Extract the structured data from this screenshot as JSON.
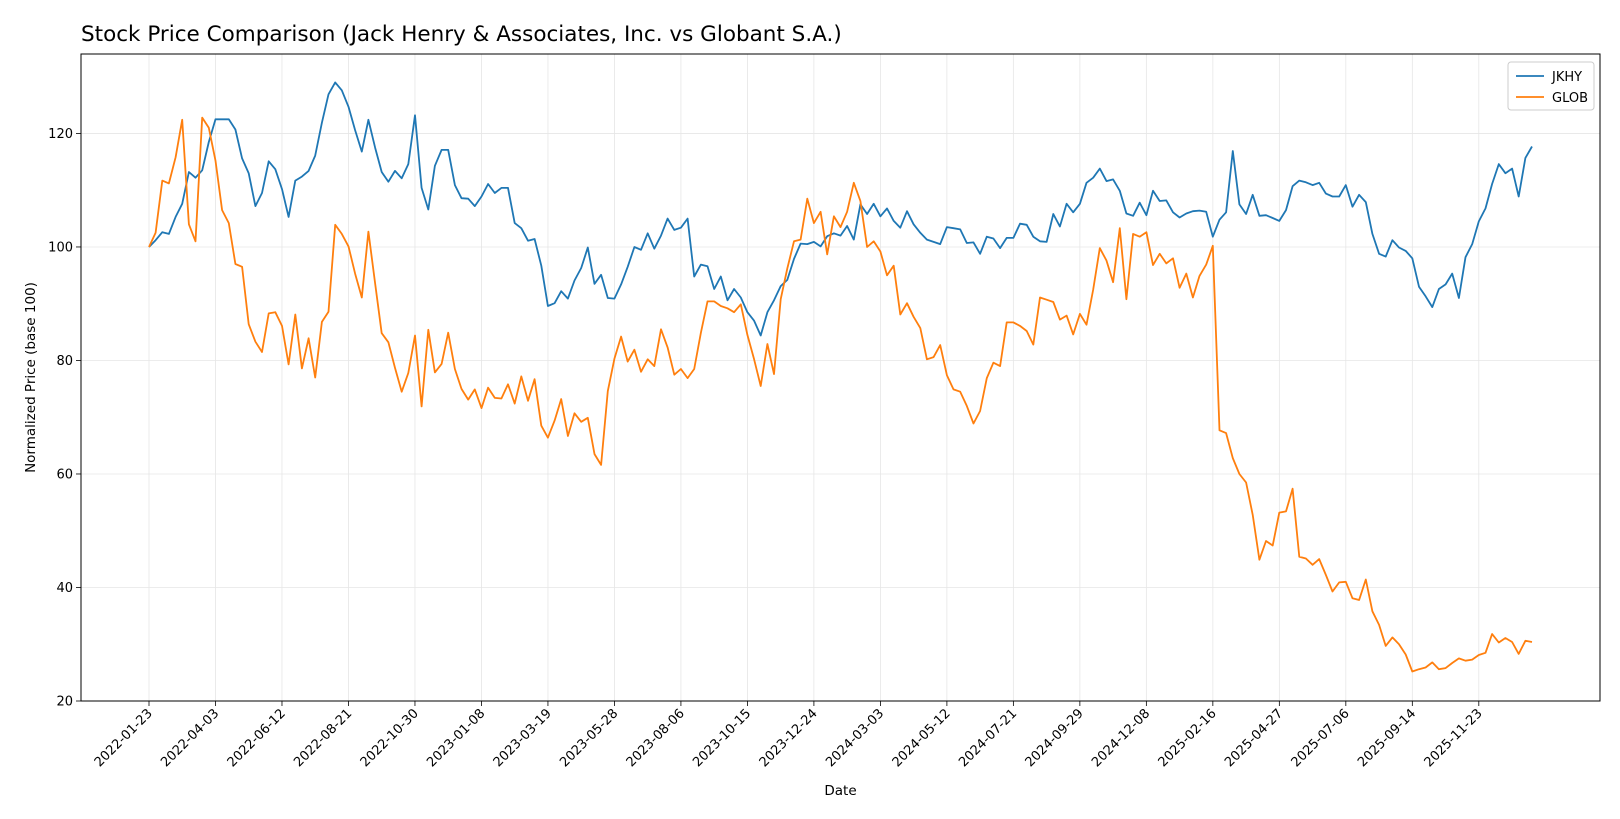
{
  "chart_data": {
    "type": "line",
    "title": "Stock Price Comparison (Jack Henry & Associates, Inc. vs Globant S.A.)",
    "xlabel": "Date",
    "ylabel": "Normalized Price (base 100)",
    "ylim": [
      20,
      134
    ],
    "yticks": [
      20,
      40,
      60,
      80,
      100,
      120
    ],
    "xticks": [
      "2022-01-23",
      "2022-04-03",
      "2022-06-12",
      "2022-08-21",
      "2022-10-30",
      "2023-01-08",
      "2023-03-19",
      "2023-05-28",
      "2023-08-06",
      "2023-10-15",
      "2023-12-24",
      "2024-03-03",
      "2024-05-12",
      "2024-07-21",
      "2024-09-29",
      "2024-12-08",
      "2025-02-16",
      "2025-04-27",
      "2025-07-06",
      "2025-09-14",
      "2025-11-23"
    ],
    "grid": true,
    "legend_position": "top-right",
    "series": [
      {
        "name": "JKHY",
        "color": "#1f77b4",
        "values": [
          100,
          101.2,
          102.6,
          102.3,
          105.3,
          107.6,
          113.2,
          112.2,
          113.5,
          118.5,
          122.5,
          122.5,
          122.5,
          120.7,
          115.6,
          113,
          107.2,
          109.5,
          115.1,
          113.7,
          110.2,
          105.3,
          111.7,
          112.4,
          113.4,
          116.1,
          121.9,
          126.9,
          129,
          127.6,
          124.7,
          120.6,
          116.8,
          122.4,
          117.5,
          113.2,
          111.5,
          113.4,
          112.1,
          114.6,
          123.2,
          110.4,
          106.6,
          114.3,
          117.1,
          117.1,
          110.9,
          108.6,
          108.5,
          107.2,
          108.9,
          111.1,
          109.5,
          110.4,
          110.4,
          104.2,
          103.3,
          101.1,
          101.4,
          96.7,
          89.6,
          90.1,
          92.2,
          90.9,
          94.1,
          96.3,
          99.9,
          93.5,
          95.1,
          91,
          90.9,
          93.4,
          96.5,
          100,
          99.5,
          102.4,
          99.7,
          102,
          105,
          103,
          103.4,
          105,
          94.8,
          96.9,
          96.6,
          92.6,
          94.8,
          90.6,
          92.6,
          91.1,
          88.5,
          87,
          84.4,
          88.5,
          90.6,
          93.1,
          94.2,
          97.9,
          100.6,
          100.5,
          100.9,
          100.1,
          101.9,
          102.4,
          102,
          103.7,
          101.3,
          107.5,
          105.8,
          107.6,
          105.4,
          106.8,
          104.6,
          103.4,
          106.3,
          104,
          102.5,
          101.3,
          100.9,
          100.5,
          103.5,
          103.3,
          103.1,
          100.7,
          100.8,
          98.8,
          101.8,
          101.5,
          99.8,
          101.6,
          101.6,
          104.1,
          103.9,
          101.8,
          101,
          100.9,
          105.8,
          103.6,
          107.6,
          106.1,
          107.6,
          111.3,
          112.2,
          113.8,
          111.6,
          111.9,
          109.9,
          105.9,
          105.5,
          107.8,
          105.6,
          109.9,
          108.1,
          108.2,
          106.1,
          105.2,
          105.9,
          106.3,
          106.4,
          106.2,
          101.8,
          104.8,
          106.1,
          116.9,
          107.5,
          105.8,
          109.2,
          105.5,
          105.6,
          105.1,
          104.6,
          106.5,
          110.7,
          111.7,
          111.4,
          110.9,
          111.3,
          109.4,
          108.9,
          108.9,
          110.9,
          107.1,
          109.2,
          107.9,
          102.3,
          98.8,
          98.3,
          101.2,
          99.9,
          99.3,
          98,
          93,
          91.3,
          89.4,
          92.6,
          93.4,
          95.3,
          91,
          98.2,
          100.5,
          104.5,
          106.8,
          111.1,
          114.6,
          113,
          113.8,
          108.9,
          115.7,
          117.7
        ]
      },
      {
        "name": "GLOB",
        "color": "#ff7f0e",
        "values": [
          100,
          102.5,
          111.7,
          111.2,
          115.8,
          122.4,
          104,
          101,
          122.8,
          121,
          115.2,
          106.5,
          104.2,
          97,
          96.5,
          86.4,
          83.3,
          81.5,
          88.3,
          88.5,
          86.1,
          79.3,
          88.1,
          78.6,
          83.9,
          77,
          86.8,
          88.6,
          103.9,
          102.3,
          100.1,
          95.3,
          91.1,
          102.7,
          93.6,
          84.8,
          83.2,
          78.7,
          74.5,
          77.8,
          84.4,
          71.9,
          85.4,
          77.9,
          79.4,
          84.9,
          78.5,
          75,
          73.1,
          74.9,
          71.6,
          75.2,
          73.4,
          73.3,
          75.8,
          72.4,
          77.2,
          72.9,
          76.7,
          68.5,
          66.4,
          69.4,
          73.2,
          66.7,
          70.7,
          69.2,
          69.9,
          63.5,
          61.6,
          74.6,
          80.3,
          84.2,
          79.8,
          81.9,
          78,
          80.2,
          79,
          85.5,
          82.3,
          77.5,
          78.5,
          76.9,
          78.5,
          84.9,
          90.4,
          90.4,
          89.6,
          89.2,
          88.5,
          89.9,
          84.5,
          80.2,
          75.5,
          82.9,
          77.6,
          90.8,
          96.2,
          101,
          101.3,
          108.5,
          104.2,
          106.2,
          98.7,
          105.4,
          103.5,
          106.2,
          111.3,
          108.1,
          100,
          101,
          99.2,
          95,
          96.7,
          88.1,
          90.1,
          87.7,
          85.7,
          80.2,
          80.6,
          82.7,
          77.4,
          74.9,
          74.5,
          72,
          68.9,
          71.1,
          76.9,
          79.6,
          79,
          86.7,
          86.7,
          86.1,
          85.2,
          82.8,
          91.1,
          90.7,
          90.3,
          87.2,
          87.9,
          84.6,
          88.2,
          86.3,
          92.5,
          99.8,
          97.6,
          93.8,
          103.3,
          90.8,
          102.3,
          101.8,
          102.6,
          96.8,
          98.8,
          97.1,
          98,
          92.8,
          95.3,
          91.1,
          94.9,
          96.9,
          100.2,
          67.7,
          67.2,
          62.8,
          60,
          58.5,
          52.8,
          44.9,
          48.2,
          47.4,
          53.2,
          53.4,
          57.4,
          45.4,
          45.1,
          44,
          45,
          42.2,
          39.3,
          40.9,
          41,
          38.1,
          37.8,
          41.4,
          35.8,
          33.4,
          29.7,
          31.2,
          30,
          28.2,
          25.2,
          25.6,
          25.9,
          26.8,
          25.6,
          25.8,
          26.7,
          27.5,
          27.1,
          27.3,
          28.1,
          28.5,
          31.8,
          30.3,
          31.1,
          30.4,
          28.3,
          30.6,
          30.4
        ]
      }
    ]
  }
}
